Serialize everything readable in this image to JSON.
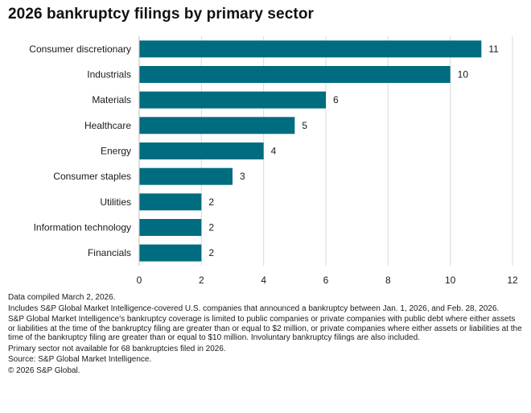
{
  "chart_data": {
    "type": "bar",
    "orientation": "horizontal",
    "title": "2026 bankruptcy filings by primary sector",
    "xlabel": "",
    "ylabel": "",
    "categories": [
      "Consumer discretionary",
      "Industrials",
      "Materials",
      "Healthcare",
      "Energy",
      "Consumer staples",
      "Utilities",
      "Information technology",
      "Financials"
    ],
    "values": [
      11,
      10,
      6,
      5,
      4,
      3,
      2,
      2,
      2
    ],
    "xlim": [
      0,
      12
    ],
    "xticks": [
      0,
      2,
      4,
      6,
      8,
      10,
      12
    ],
    "bar_color": "#006c80",
    "grid": "vertical",
    "data_labels": true,
    "legend": "none"
  },
  "notes": [
    "Data compiled March 2, 2026.",
    "Includes S&P Global Market Intelligence-covered U.S. companies that announced a bankruptcy between Jan. 1, 2026, and Feb. 28, 2026.",
    "S&P Global Market Intelligence's bankruptcy coverage is limited to public companies or private companies with public debt where either assets or liabilities at the time of the bankruptcy filing are greater than or equal to $2 million, or private companies where either assets or liabilities at the time of the bankruptcy filing are greater than or equal to $10 million. Involuntary bankruptcy filings are also included.",
    "Primary sector not available for 68 bankruptcies filed in 2026.",
    "Source: S&P Global Market Intelligence.",
    "© 2026 S&P Global."
  ],
  "colors": {
    "bar": "#006c80",
    "grid": "#d9d9d9",
    "axis": "#bdbdbd",
    "text": "#1a1a1a"
  }
}
